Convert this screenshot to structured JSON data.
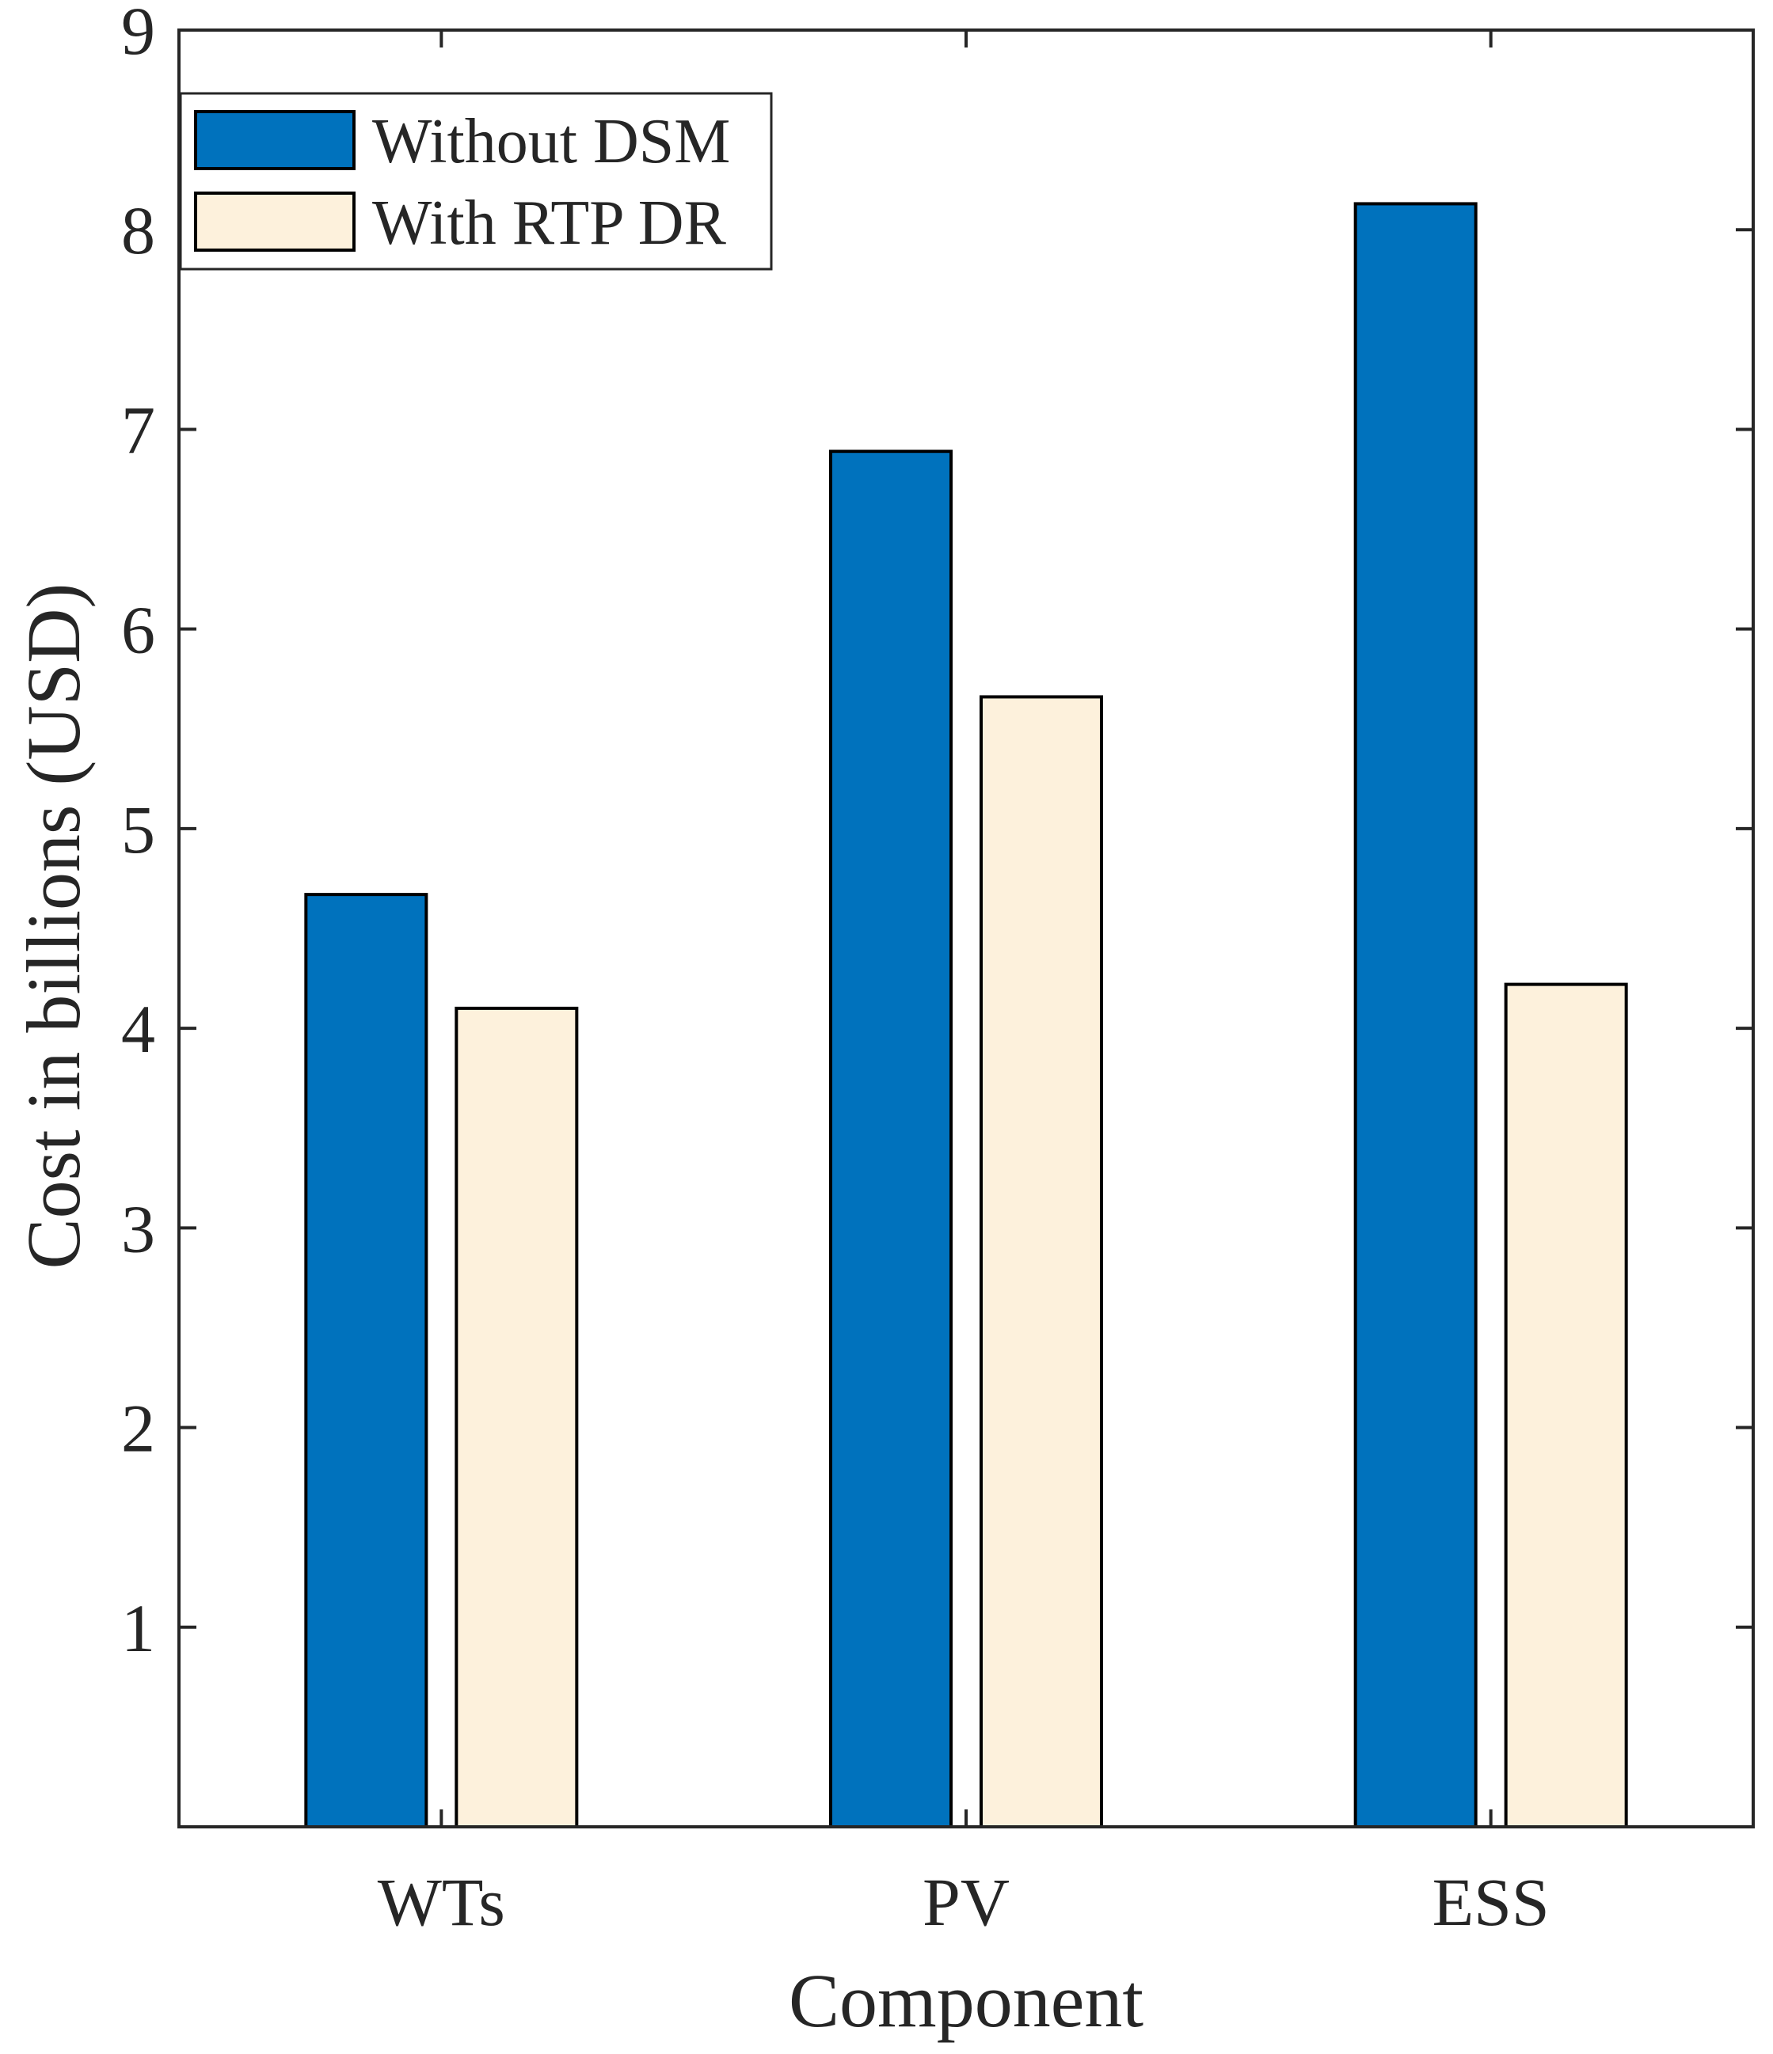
{
  "chart_data": {
    "type": "bar",
    "title": "",
    "xlabel": "Component",
    "ylabel": "Cost in billions (USD)",
    "categories": [
      "WTs",
      "PV",
      "ESS"
    ],
    "ylim": [
      0,
      9
    ],
    "yticks": [
      1,
      2,
      3,
      4,
      5,
      6,
      7,
      8,
      9
    ],
    "ytick_labels": [
      "1",
      "2",
      "3",
      "4",
      "5",
      "6",
      "7",
      "8",
      "9"
    ],
    "grid": false,
    "legend_position": "top-left",
    "series": [
      {
        "name": "Without DSM",
        "color": "#0072BD",
        "values": [
          4.67,
          6.89,
          8.13
        ]
      },
      {
        "name": "With RTP DR",
        "color": "#FDF1DC",
        "values": [
          4.1,
          5.66,
          4.22
        ]
      }
    ]
  }
}
